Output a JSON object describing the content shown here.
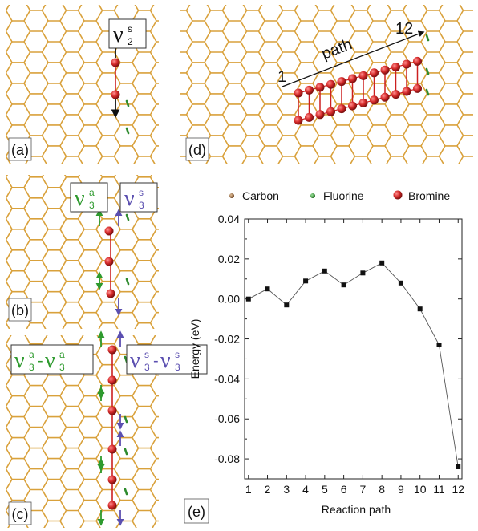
{
  "panels": {
    "a": {
      "label": "(a)",
      "mode": {
        "nu": "ν",
        "sub": "2",
        "sup": "s"
      }
    },
    "b": {
      "label": "(b)",
      "mode_left": {
        "nu": "ν",
        "sub": "3",
        "sup": "a"
      },
      "mode_right": {
        "nu": "ν",
        "sub": "3",
        "sup": "s"
      }
    },
    "c": {
      "label": "(c)",
      "mode_left": {
        "nu1": "ν",
        "sub1": "3",
        "sup1": "a",
        "dash": "-",
        "nu2": "ν",
        "sub2": "3",
        "sup2": "a"
      },
      "mode_right": {
        "nu1": "ν",
        "sub1": "3",
        "sup1": "s",
        "dash": "-",
        "nu2": "ν",
        "sub2": "3",
        "sup2": "s"
      }
    },
    "d": {
      "label": "(d)",
      "path_label": "path",
      "path_start": "1",
      "path_end": "12"
    },
    "e": {
      "label": "(e)"
    }
  },
  "legend": [
    {
      "label": "Carbon",
      "color": "#8b5a2b"
    },
    {
      "label": "Fluorine",
      "color": "#2e8b2e"
    },
    {
      "label": "Bromine",
      "color": "#cc2020"
    }
  ],
  "colors": {
    "lattice": "#d9a13b",
    "fluorine": "#2e8b2e",
    "bromine": "#cc2020",
    "green_arrow": "#2e9a2e",
    "blue_arrow": "#5b4fb0"
  },
  "chart_data": {
    "type": "line",
    "xlabel": "Reaction path",
    "ylabel": "Energy (eV)",
    "x": [
      1,
      2,
      3,
      4,
      5,
      6,
      7,
      8,
      9,
      10,
      11,
      12
    ],
    "y": [
      0.0,
      0.005,
      -0.003,
      0.009,
      0.014,
      0.007,
      0.013,
      0.018,
      0.008,
      -0.005,
      -0.023,
      -0.084
    ],
    "xlim": [
      0.8,
      12.2
    ],
    "ylim": [
      -0.09,
      0.04
    ],
    "x_ticks": [
      "1",
      "2",
      "3",
      "4",
      "5",
      "6",
      "7",
      "8",
      "9",
      "10",
      "11",
      "12"
    ],
    "y_ticks": [
      "0.04",
      "0.02",
      "0.00",
      "-0.02",
      "-0.04",
      "-0.06",
      "-0.08"
    ],
    "y_tick_values": [
      0.04,
      0.02,
      0.0,
      -0.02,
      -0.04,
      -0.06,
      -0.08
    ],
    "grid": false,
    "marker": "square"
  }
}
